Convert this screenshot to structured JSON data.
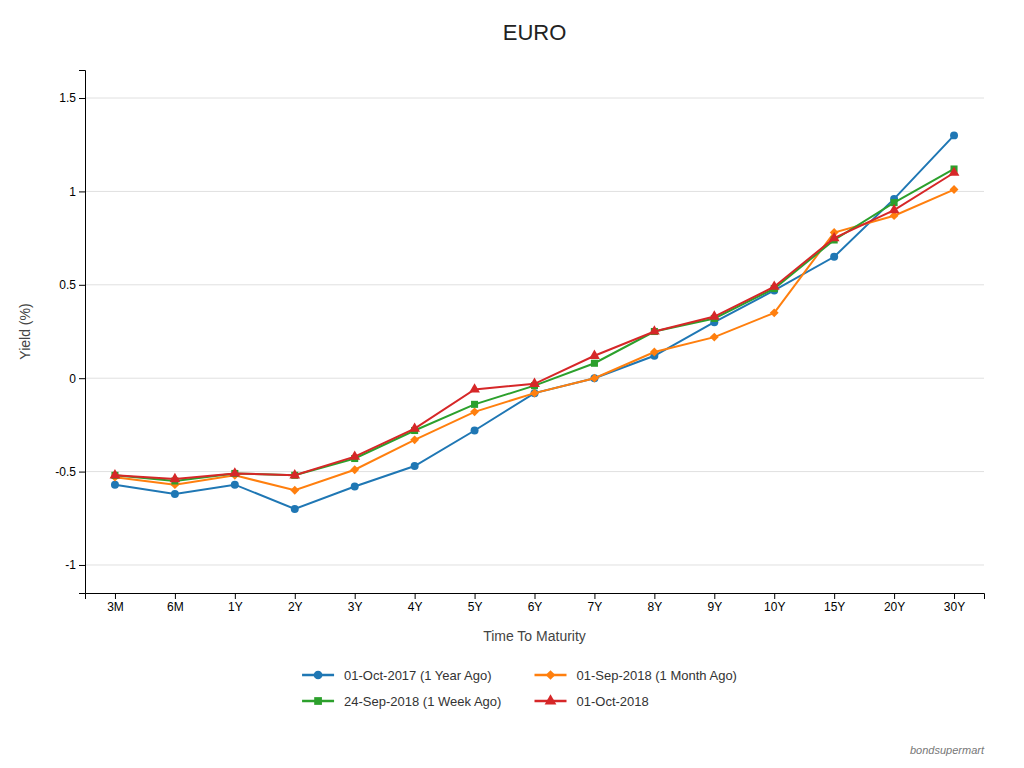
{
  "chart_data": {
    "type": "line",
    "title": "EURO",
    "xlabel": "Time To Maturity",
    "ylabel": "Yield (%)",
    "categories": [
      "3M",
      "6M",
      "1Y",
      "2Y",
      "3Y",
      "4Y",
      "5Y",
      "6Y",
      "7Y",
      "8Y",
      "9Y",
      "10Y",
      "15Y",
      "20Y",
      "30Y"
    ],
    "series": [
      {
        "name": "01-Oct-2017 (1 Year Ago)",
        "marker": "circle",
        "values": [
          -0.57,
          -0.62,
          -0.57,
          -0.7,
          -0.58,
          -0.47,
          -0.28,
          -0.08,
          0.0,
          0.12,
          0.3,
          0.47,
          0.65,
          0.96,
          1.3
        ]
      },
      {
        "name": "01-Sep-2018 (1 Month Ago)",
        "marker": "diamond",
        "values": [
          -0.53,
          -0.57,
          -0.52,
          -0.6,
          -0.49,
          -0.33,
          -0.18,
          -0.08,
          0.0,
          0.14,
          0.22,
          0.35,
          0.78,
          0.87,
          1.01
        ]
      },
      {
        "name": "24-Sep-2018 (1 Week Ago)",
        "marker": "square",
        "values": [
          -0.52,
          -0.55,
          -0.51,
          -0.52,
          -0.43,
          -0.28,
          -0.14,
          -0.04,
          0.08,
          0.25,
          0.32,
          0.48,
          0.74,
          0.94,
          1.12
        ]
      },
      {
        "name": "01-Oct-2018",
        "marker": "triangle",
        "values": [
          -0.52,
          -0.54,
          -0.51,
          -0.52,
          -0.42,
          -0.27,
          -0.06,
          -0.03,
          0.12,
          0.25,
          0.33,
          0.49,
          0.75,
          0.9,
          1.1
        ]
      }
    ],
    "ylim": [
      -1.15,
      1.65
    ],
    "yticks": [
      -1,
      -0.5,
      0,
      0.5,
      1,
      1.5
    ],
    "grid": true,
    "legend": "bottom",
    "annotations": [
      {
        "text": "bondsupermart"
      }
    ]
  }
}
